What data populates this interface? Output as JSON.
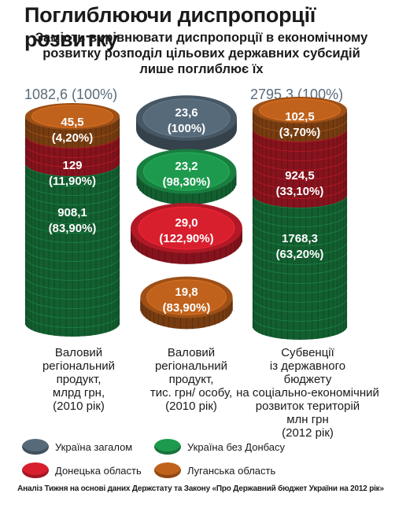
{
  "title": "Поглиблюючи диспропорції розвитку",
  "subtitle": "Замість вирівнювати диспропорції в економічному розвитку розподіл цільових державних субсидій лише поглиблює їх",
  "totals": {
    "left": "1082,6 (100%)",
    "right": "2795,3 (100%)"
  },
  "colors": {
    "ukraine_total": "#566a7a",
    "ukraine_wo_donbas": "#1e9a4e",
    "donetsk": "#d81f2e",
    "luhansk": "#c0621c"
  },
  "chart_data": [
    {
      "type": "stacked-coins",
      "caption": "Валовий регіональний продукт, млрд грн, (2010 рік)",
      "caption_lines": [
        "Валовий",
        "регіональний",
        "продукт,",
        "млрд грн,",
        "(2010 рік)"
      ],
      "segments": [
        {
          "series": "Луганська область",
          "value": 45.5,
          "value_label": "45,5",
          "share_label": "(4,20%)",
          "color_key": "luhansk"
        },
        {
          "series": "Донецька область",
          "value": 129,
          "value_label": "129",
          "share_label": "(11,90%)",
          "color_key": "donetsk"
        },
        {
          "series": "Україна без Донбасу",
          "value": 908.1,
          "value_label": "908,1",
          "share_label": "(83,90%)",
          "color_key": "ukraine_wo_donbas"
        }
      ]
    },
    {
      "type": "coins",
      "caption": "Валовий регіональний продукт, тис. грн/ особу, (2010 рік)",
      "caption_lines": [
        "Валовий",
        "регіональний",
        "продукт,",
        "тис. грн/ особу,",
        "(2010 рік)"
      ],
      "segments": [
        {
          "series": "Україна загалом",
          "value": 23.6,
          "value_label": "23,6",
          "share_label": "(100%)",
          "color_key": "ukraine_total"
        },
        {
          "series": "Україна без Донбасу",
          "value": 23.2,
          "value_label": "23,2",
          "share_label": "(98,30%)",
          "color_key": "ukraine_wo_donbas"
        },
        {
          "series": "Донецька область",
          "value": 29.0,
          "value_label": "29,0",
          "share_label": "(122,90%)",
          "color_key": "donetsk"
        },
        {
          "series": "Луганська область",
          "value": 19.8,
          "value_label": "19,8",
          "share_label": "(83,90%)",
          "color_key": "luhansk"
        }
      ]
    },
    {
      "type": "stacked-coins",
      "caption": "Субвенції із державного бюджету на соціально-економічний розвиток територій млн грн (2012 рік)",
      "caption_lines": [
        "Субвенції",
        "із державного",
        "бюджету",
        "на соціально-економічний",
        "розвиток територій",
        "млн грн",
        "(2012 рік)"
      ],
      "segments": [
        {
          "series": "Луганська область",
          "value": 102.5,
          "value_label": "102,5",
          "share_label": "(3,70%)",
          "color_key": "luhansk"
        },
        {
          "series": "Донецька область",
          "value": 924.5,
          "value_label": "924,5",
          "share_label": "(33,10%)",
          "color_key": "donetsk"
        },
        {
          "series": "Україна без Донбасу",
          "value": 1768.3,
          "value_label": "1768,3",
          "share_label": "(63,20%)",
          "color_key": "ukraine_wo_donbas"
        }
      ]
    }
  ],
  "legend": [
    {
      "label": "Україна загалом",
      "color_key": "ukraine_total"
    },
    {
      "label": "Україна без Донбасу",
      "color_key": "ukraine_wo_donbas"
    },
    {
      "label": "Донецька область",
      "color_key": "donetsk"
    },
    {
      "label": "Луганська область",
      "color_key": "luhansk"
    }
  ],
  "source": "Аналіз Тижня на основі даних Держстату та Закону «Про Державний бюджет України на 2012 рік»"
}
